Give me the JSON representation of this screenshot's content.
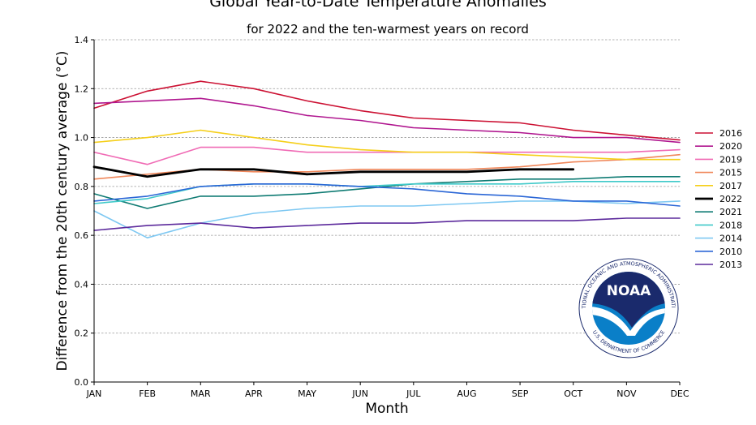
{
  "chart_data": {
    "type": "line",
    "title": "Global Year-to-Date Temperature Anomalies",
    "subtitle": "for 2022 and the ten-warmest years on record",
    "xlabel": "Month",
    "ylabel": "Difference from the 20th century average (°C)",
    "ylim": [
      0,
      1.4
    ],
    "yticks": [
      0.0,
      0.2,
      0.4,
      0.6,
      0.8,
      1.0,
      1.2,
      1.4
    ],
    "ytick_labels": [
      "0.0",
      "0.2",
      "0.4",
      "0.6",
      "0.8",
      "1.0",
      "1.2",
      "1.4"
    ],
    "categories": [
      "JAN",
      "FEB",
      "MAR",
      "APR",
      "MAY",
      "JUN",
      "JUL",
      "AUG",
      "SEP",
      "OCT",
      "NOV",
      "DEC"
    ],
    "grid": "horizontal dashed",
    "legend_position": "right",
    "series": [
      {
        "name": "2016",
        "color": "#cc1133",
        "width": 1.6,
        "values": [
          1.12,
          1.19,
          1.23,
          1.2,
          1.15,
          1.11,
          1.08,
          1.07,
          1.06,
          1.03,
          1.01,
          0.99
        ]
      },
      {
        "name": "2020",
        "color": "#b0168f",
        "width": 1.6,
        "values": [
          1.14,
          1.15,
          1.16,
          1.13,
          1.09,
          1.07,
          1.04,
          1.03,
          1.02,
          1.0,
          1.0,
          0.98
        ]
      },
      {
        "name": "2019",
        "color": "#f06bb5",
        "width": 1.6,
        "values": [
          0.94,
          0.89,
          0.96,
          0.96,
          0.94,
          0.94,
          0.94,
          0.94,
          0.94,
          0.94,
          0.94,
          0.95
        ]
      },
      {
        "name": "2015",
        "color": "#f0875a",
        "width": 1.6,
        "values": [
          0.83,
          0.85,
          0.87,
          0.86,
          0.86,
          0.87,
          0.87,
          0.87,
          0.88,
          0.9,
          0.91,
          0.93
        ]
      },
      {
        "name": "2017",
        "color": "#f5cf1a",
        "width": 1.6,
        "values": [
          0.98,
          1.0,
          1.03,
          1.0,
          0.97,
          0.95,
          0.94,
          0.94,
          0.93,
          0.92,
          0.91,
          0.91
        ]
      },
      {
        "name": "2022",
        "color": "#000000",
        "width": 2.8,
        "values": [
          0.88,
          0.84,
          0.87,
          0.87,
          0.85,
          0.86,
          0.86,
          0.86,
          0.87,
          0.87,
          null,
          null
        ]
      },
      {
        "name": "2021",
        "color": "#0f7b73",
        "width": 1.6,
        "values": [
          0.77,
          0.71,
          0.76,
          0.76,
          0.77,
          0.79,
          0.81,
          0.82,
          0.83,
          0.83,
          0.84,
          0.84
        ]
      },
      {
        "name": "2018",
        "color": "#3fc9c9",
        "width": 1.6,
        "values": [
          0.73,
          0.75,
          0.8,
          0.81,
          0.81,
          0.8,
          0.81,
          0.81,
          0.81,
          0.82,
          0.82,
          0.82
        ]
      },
      {
        "name": "2014",
        "color": "#7ec8f2",
        "width": 1.6,
        "values": [
          0.7,
          0.59,
          0.65,
          0.69,
          0.71,
          0.72,
          0.72,
          0.73,
          0.74,
          0.74,
          0.73,
          0.74
        ]
      },
      {
        "name": "2010",
        "color": "#2a66d6",
        "width": 1.6,
        "values": [
          0.74,
          0.76,
          0.8,
          0.81,
          0.81,
          0.8,
          0.79,
          0.77,
          0.76,
          0.74,
          0.74,
          0.72
        ]
      },
      {
        "name": "2013",
        "color": "#5c2a9c",
        "width": 1.6,
        "values": [
          0.62,
          0.64,
          0.65,
          0.63,
          0.64,
          0.65,
          0.65,
          0.66,
          0.66,
          0.66,
          0.67,
          0.67
        ]
      }
    ]
  },
  "logo": {
    "text": "NOAA",
    "ring_text": "NATIONAL OCEANIC AND ATMOSPHERIC ADMINISTRATION",
    "ring_text_bottom": "U.S. DEPARTMENT OF COMMERCE",
    "colors": {
      "navy": "#1a2a6c",
      "blue": "#0a7fc8",
      "white": "#ffffff"
    }
  }
}
